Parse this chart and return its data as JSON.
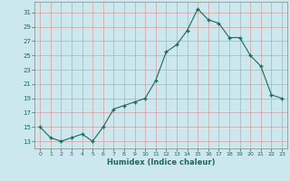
{
  "x": [
    0,
    1,
    2,
    3,
    4,
    5,
    6,
    7,
    8,
    9,
    10,
    11,
    12,
    13,
    14,
    15,
    16,
    17,
    18,
    19,
    20,
    21,
    22,
    23
  ],
  "y": [
    15,
    13.5,
    13,
    13.5,
    14,
    13,
    15,
    17.5,
    18,
    18.5,
    19,
    21.5,
    25.5,
    26.5,
    28.5,
    31.5,
    30,
    29.5,
    27.5,
    27.5,
    25,
    23.5,
    19.5,
    19
  ],
  "xlabel": "Humidex (Indice chaleur)",
  "ylabel": "",
  "bg_color": "#cce8ee",
  "line_color": "#1a6b5a",
  "grid_major_color": "#d4a0a0",
  "grid_minor_color": "#e8c8c8",
  "xlim": [
    -0.5,
    23.5
  ],
  "ylim": [
    12,
    32.5
  ],
  "yticks": [
    13,
    15,
    17,
    19,
    21,
    23,
    25,
    27,
    29,
    31
  ],
  "xticks": [
    0,
    1,
    2,
    3,
    4,
    5,
    6,
    7,
    8,
    9,
    10,
    11,
    12,
    13,
    14,
    15,
    16,
    17,
    18,
    19,
    20,
    21,
    22,
    23
  ]
}
